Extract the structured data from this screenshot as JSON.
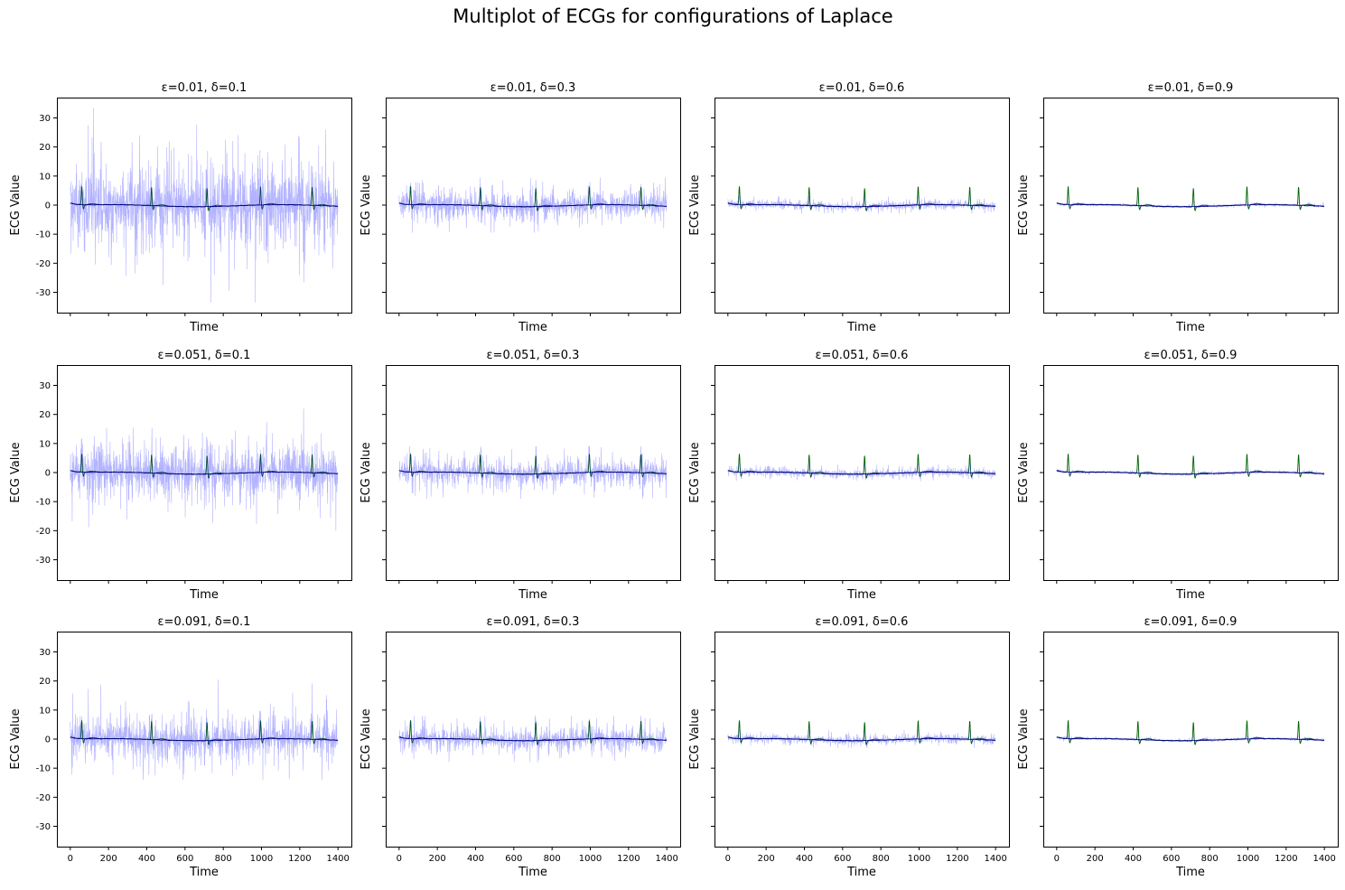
{
  "figure": {
    "title": "Multiplot of ECGs for configurations of Laplace"
  },
  "chart_data": {
    "type": "line",
    "title": "Multiplot of ECGs for configurations of Laplace",
    "layout": "3x4 grid, shared axes",
    "xlabel": "Time",
    "ylabel": "ECG Value",
    "xlim": [
      -70,
      1470
    ],
    "ylim": [
      -37,
      37
    ],
    "xticks": [
      0,
      200,
      400,
      600,
      800,
      1000,
      1200,
      1400
    ],
    "yticks": [
      30,
      20,
      10,
      0,
      -10,
      -20,
      -30
    ],
    "n_samples": 1400,
    "beat_times": [
      60,
      425,
      715,
      995,
      1265
    ],
    "series_styles": [
      {
        "role": "original ECG",
        "color": "#006400"
      },
      {
        "role": "noisy ECG (Laplace)",
        "color": "#0000ff",
        "opacity": 0.3
      },
      {
        "role": "denoised ECG",
        "color": "#000080"
      }
    ],
    "panels": [
      {
        "title": "ε=0.01, δ=0.1",
        "epsilon": 0.01,
        "delta": 0.1,
        "noise_scale": 5.2,
        "noise_max": 33.5,
        "noise_min": -33.5
      },
      {
        "title": "ε=0.01, δ=0.3",
        "epsilon": 0.01,
        "delta": 0.3,
        "noise_scale": 1.8,
        "noise_max": 9.5,
        "noise_min": -9.5
      },
      {
        "title": "ε=0.01, δ=0.6",
        "epsilon": 0.01,
        "delta": 0.6,
        "noise_scale": 0.55,
        "noise_max": 3.0,
        "noise_min": -3.0
      },
      {
        "title": "ε=0.01, δ=0.9",
        "epsilon": 0.01,
        "delta": 0.9,
        "noise_scale": 0.18,
        "noise_max": 1.0,
        "noise_min": -1.0
      },
      {
        "title": "ε=0.051, δ=0.1",
        "epsilon": 0.051,
        "delta": 0.1,
        "noise_scale": 3.4,
        "noise_max": 22.0,
        "noise_min": -20.0
      },
      {
        "title": "ε=0.051, δ=0.3",
        "epsilon": 0.051,
        "delta": 0.3,
        "noise_scale": 1.6,
        "noise_max": 9.0,
        "noise_min": -9.0
      },
      {
        "title": "ε=0.051, δ=0.6",
        "epsilon": 0.051,
        "delta": 0.6,
        "noise_scale": 0.55,
        "noise_max": 3.0,
        "noise_min": -3.0
      },
      {
        "title": "ε=0.051, δ=0.9",
        "epsilon": 0.051,
        "delta": 0.9,
        "noise_scale": 0.18,
        "noise_max": 1.0,
        "noise_min": -1.0
      },
      {
        "title": "ε=0.091, δ=0.1",
        "epsilon": 0.091,
        "delta": 0.1,
        "noise_scale": 2.8,
        "noise_max": 20.5,
        "noise_min": -14.0
      },
      {
        "title": "ε=0.091, δ=0.3",
        "epsilon": 0.091,
        "delta": 0.3,
        "noise_scale": 1.5,
        "noise_max": 8.0,
        "noise_min": -8.0
      },
      {
        "title": "ε=0.091, δ=0.6",
        "epsilon": 0.091,
        "delta": 0.6,
        "noise_scale": 0.55,
        "noise_max": 3.0,
        "noise_min": -3.0
      },
      {
        "title": "ε=0.091, δ=0.9",
        "epsilon": 0.091,
        "delta": 0.9,
        "noise_scale": 0.18,
        "noise_max": 1.0,
        "noise_min": -1.0
      }
    ]
  }
}
